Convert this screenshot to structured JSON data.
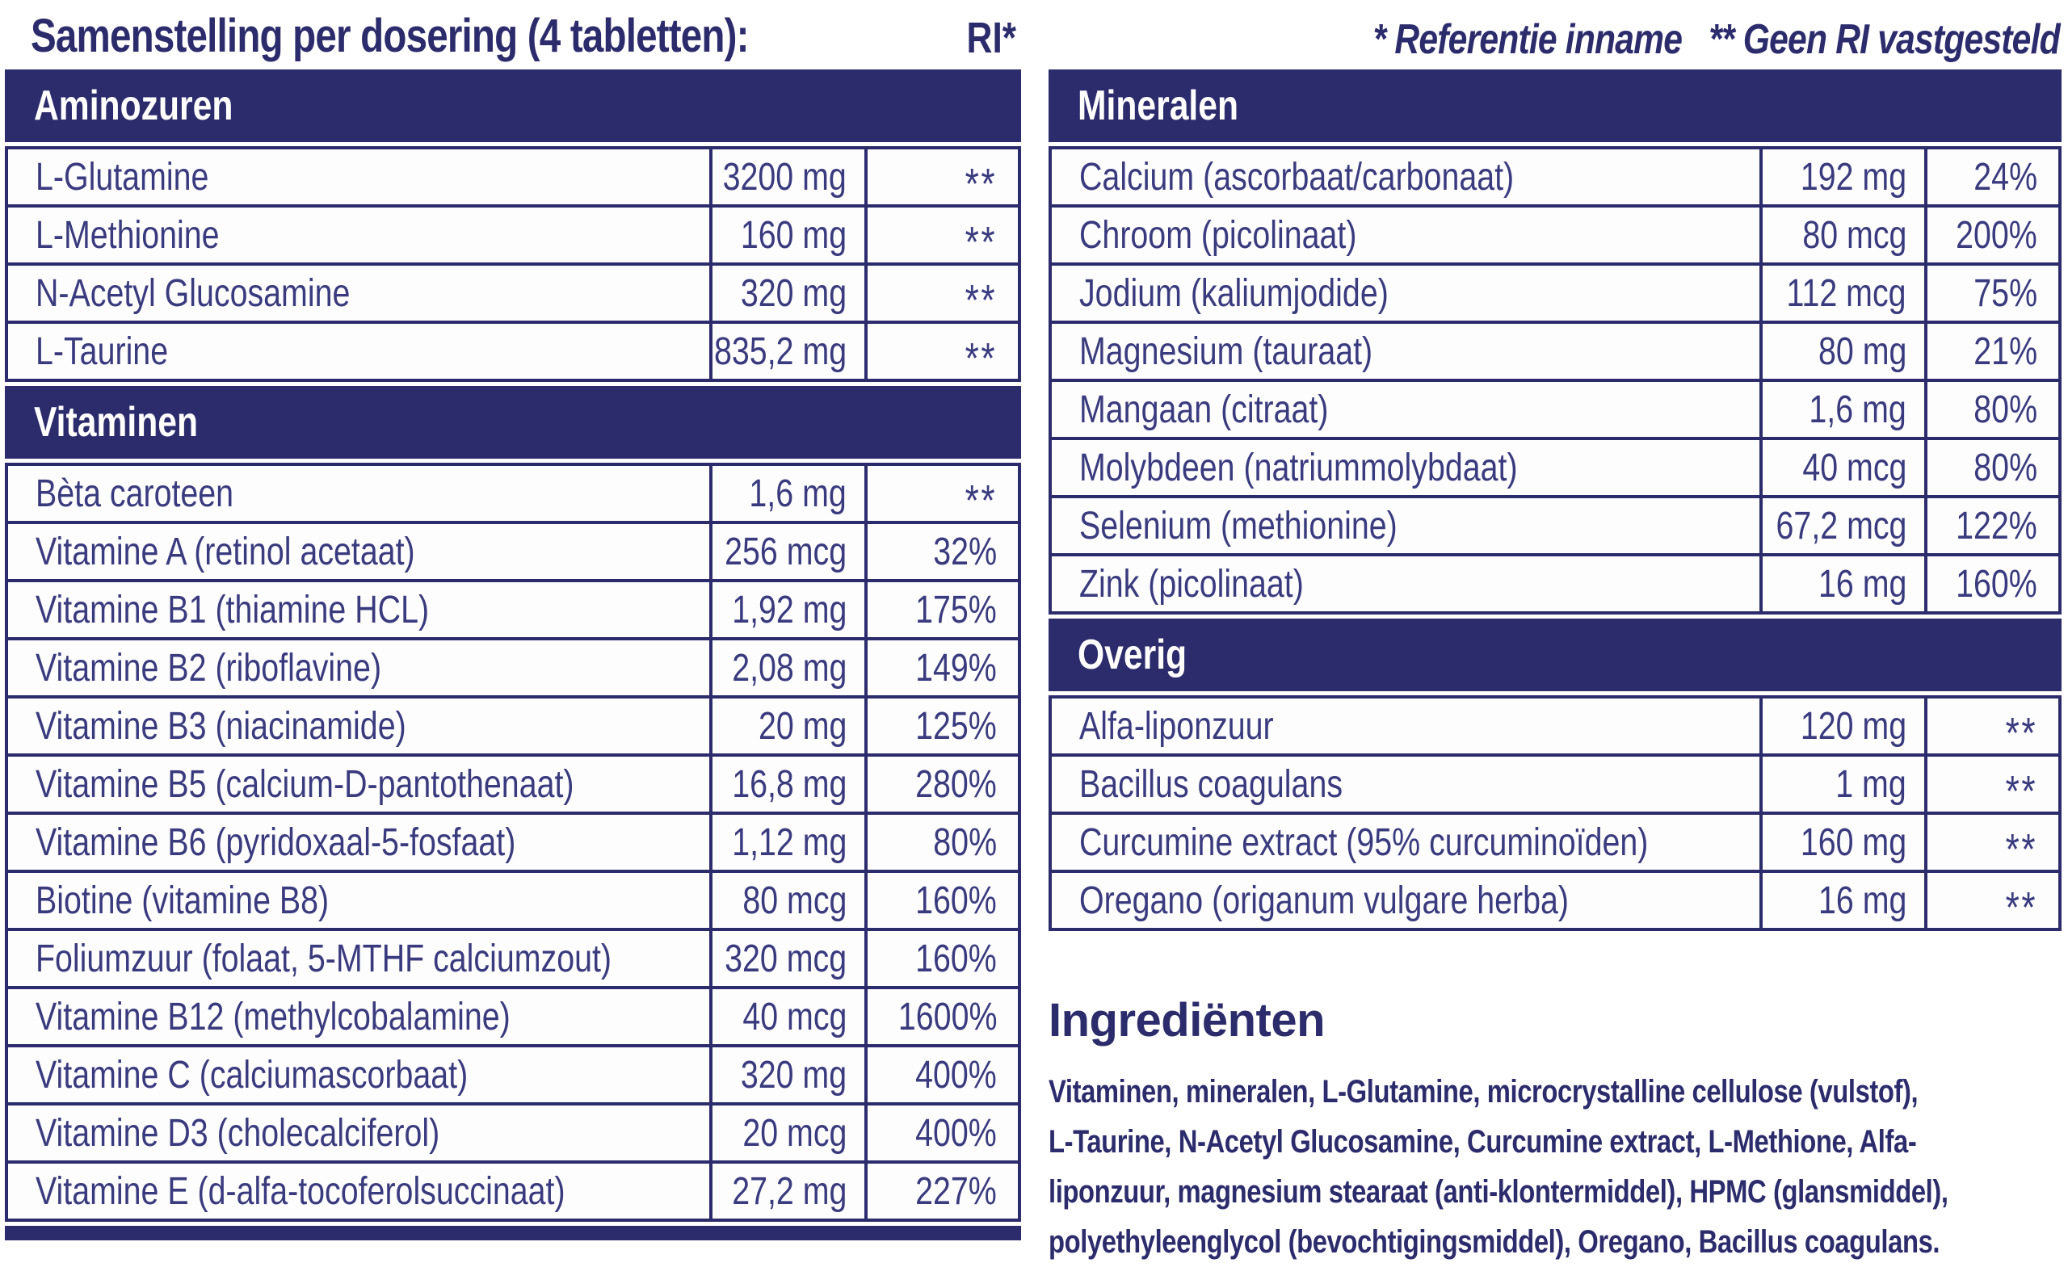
{
  "header": {
    "title": "Samenstelling per dosering (4 tabletten):",
    "ri_label": "RI*",
    "note": "* Referentie inname   ** Geen RI vastgesteld"
  },
  "tables": {
    "left": {
      "sections": [
        {
          "title": "Aminozuren",
          "rows": [
            [
              "L-Glutamine",
              "3200 mg",
              "**"
            ],
            [
              "L-Methionine",
              "160 mg",
              "**"
            ],
            [
              "N-Acetyl Glucosamine",
              "320 mg",
              "**"
            ],
            [
              "L-Taurine",
              "835,2 mg",
              "**"
            ]
          ]
        },
        {
          "title": "Vitaminen",
          "rows": [
            [
              "Bèta caroteen",
              "1,6 mg",
              "**"
            ],
            [
              "Vitamine A (retinol acetaat)",
              "256 mcg",
              "32%"
            ],
            [
              "Vitamine B1 (thiamine HCL)",
              "1,92 mg",
              "175%"
            ],
            [
              "Vitamine B2 (riboflavine)",
              "2,08 mg",
              "149%"
            ],
            [
              "Vitamine B3 (niacinamide)",
              "20 mg",
              "125%"
            ],
            [
              "Vitamine B5 (calcium-D-pantothenaat)",
              "16,8 mg",
              "280%"
            ],
            [
              "Vitamine B6 (pyridoxaal-5-fosfaat)",
              "1,12 mg",
              "80%"
            ],
            [
              "Biotine (vitamine B8)",
              "80 mcg",
              "160%"
            ],
            [
              "Foliumzuur (folaat, 5-MTHF calciumzout)",
              "320 mcg",
              "160%"
            ],
            [
              "Vitamine B12 (methylcobalamine)",
              "40 mcg",
              "1600%"
            ],
            [
              "Vitamine C (calciumascorbaat)",
              "320 mg",
              "400%"
            ],
            [
              "Vitamine D3 (cholecalciferol)",
              "20 mcg",
              "400%"
            ],
            [
              "Vitamine E (d-alfa-tocoferolsuccinaat)",
              "27,2 mg",
              "227%"
            ]
          ]
        }
      ],
      "thick_bottom": true
    },
    "right": {
      "sections": [
        {
          "title": "Mineralen",
          "rows": [
            [
              "Calcium (ascorbaat/carbonaat)",
              "192 mg",
              "24%"
            ],
            [
              "Chroom (picolinaat)",
              "80 mcg",
              "200%"
            ],
            [
              "Jodium (kaliumjodide)",
              "112 mcg",
              "75%"
            ],
            [
              "Magnesium (tauraat)",
              "80 mg",
              "21%"
            ],
            [
              "Mangaan (citraat)",
              "1,6 mg",
              "80%"
            ],
            [
              "Molybdeen (natriummolybdaat)",
              "40 mcg",
              "80%"
            ],
            [
              "Selenium (methionine)",
              "67,2 mcg",
              "122%"
            ],
            [
              "Zink (picolinaat)",
              "16 mg",
              "160%"
            ]
          ]
        },
        {
          "title": "Overig",
          "rows": [
            [
              "Alfa-liponzuur",
              "120 mg",
              "**"
            ],
            [
              "Bacillus coagulans",
              "1 mg",
              "**"
            ],
            [
              "Curcumine extract (95% curcuminoïden)",
              "160 mg",
              "**"
            ],
            [
              "Oregano (origanum vulgare herba)",
              "16 mg",
              "**"
            ]
          ]
        }
      ],
      "thick_bottom": false
    }
  },
  "ingredients": {
    "title": "Ingrediënten",
    "text": "Vitaminen, mineralen, L-Glutamine, microcrystalline cellulose (vulstof),\nL-Taurine, N-Acetyl Glucosamine, Curcumine extract, L-Methione, Alfa-\nliponzuur, magnesium stearaat (anti-klontermiddel), HPMC (glansmiddel),\npolyethyleenglycol (bevochtigingsmiddel), Oregano, Bacillus coagulans."
  },
  "colors": {
    "bar_navy": "#2c2c6d",
    "text_ink": "#3a3b7e"
  }
}
